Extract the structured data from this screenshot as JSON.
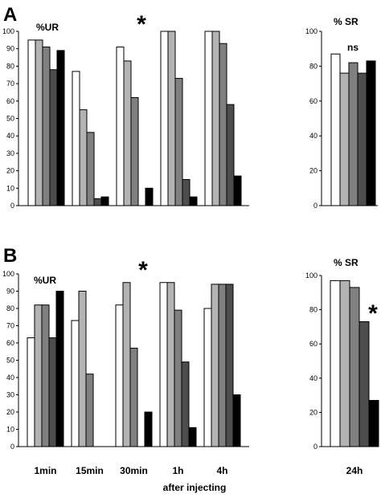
{
  "figure": {
    "panel_labels": [
      "A",
      "B"
    ],
    "footer_label": "after injecting"
  },
  "colors": [
    "#ffffff",
    "#b3b3b3",
    "#808080",
    "#4d4d4d",
    "#000000"
  ],
  "chart_data": [
    {
      "id": "A-left",
      "type": "bar",
      "panel": "A",
      "ylabel": "%UR",
      "ylim": [
        0,
        100
      ],
      "yticks": [
        0,
        10,
        20,
        30,
        40,
        50,
        60,
        70,
        80,
        90,
        100
      ],
      "categories": [
        "1min",
        "15min",
        "30min",
        "1h",
        "4h"
      ],
      "category_labels_shown": false,
      "series": [
        {
          "values": [
            95,
            77,
            91,
            100,
            100
          ]
        },
        {
          "values": [
            95,
            55,
            83,
            100,
            100
          ]
        },
        {
          "values": [
            91,
            42,
            62,
            73,
            93
          ]
        },
        {
          "values": [
            78,
            4,
            0,
            15,
            58
          ]
        },
        {
          "values": [
            89,
            5,
            10,
            5,
            17
          ]
        }
      ],
      "annotations": [
        {
          "text": "*",
          "category": "30min"
        }
      ]
    },
    {
      "id": "A-right",
      "type": "bar",
      "panel": "A",
      "ylabel": "% SR",
      "ylim": [
        0,
        100
      ],
      "yticks": [
        0,
        20,
        40,
        60,
        80,
        100
      ],
      "categories": [
        "24h"
      ],
      "category_labels_shown": false,
      "series": [
        {
          "values": [
            87
          ]
        },
        {
          "values": [
            76
          ]
        },
        {
          "values": [
            82
          ]
        },
        {
          "values": [
            76
          ]
        },
        {
          "values": [
            83
          ]
        }
      ],
      "annotations": [
        {
          "text": "ns",
          "category": "24h"
        }
      ]
    },
    {
      "id": "B-left",
      "type": "bar",
      "panel": "B",
      "ylabel": "%UR",
      "ylim": [
        0,
        100
      ],
      "yticks": [
        0,
        10,
        20,
        30,
        40,
        50,
        60,
        70,
        80,
        90,
        100
      ],
      "categories": [
        "1min",
        "15min",
        "30min",
        "1h",
        "4h"
      ],
      "category_labels_shown": true,
      "series": [
        {
          "values": [
            63,
            73,
            82,
            95,
            80
          ]
        },
        {
          "values": [
            82,
            90,
            95,
            95,
            94
          ]
        },
        {
          "values": [
            82,
            42,
            57,
            79,
            94
          ]
        },
        {
          "values": [
            63,
            0,
            0,
            49,
            94
          ]
        },
        {
          "values": [
            90,
            0,
            20,
            11,
            30
          ]
        }
      ],
      "annotations": [
        {
          "text": "*",
          "category": "30min"
        }
      ]
    },
    {
      "id": "B-right",
      "type": "bar",
      "panel": "B",
      "ylabel": "% SR",
      "ylim": [
        0,
        100
      ],
      "yticks": [
        0,
        20,
        40,
        60,
        80,
        100
      ],
      "categories": [
        "24h"
      ],
      "category_labels_shown": true,
      "series": [
        {
          "values": [
            97
          ]
        },
        {
          "values": [
            97
          ]
        },
        {
          "values": [
            93
          ]
        },
        {
          "values": [
            73
          ]
        },
        {
          "values": [
            27
          ]
        }
      ],
      "annotations": [
        {
          "text": "*",
          "category": "24h"
        }
      ]
    }
  ]
}
